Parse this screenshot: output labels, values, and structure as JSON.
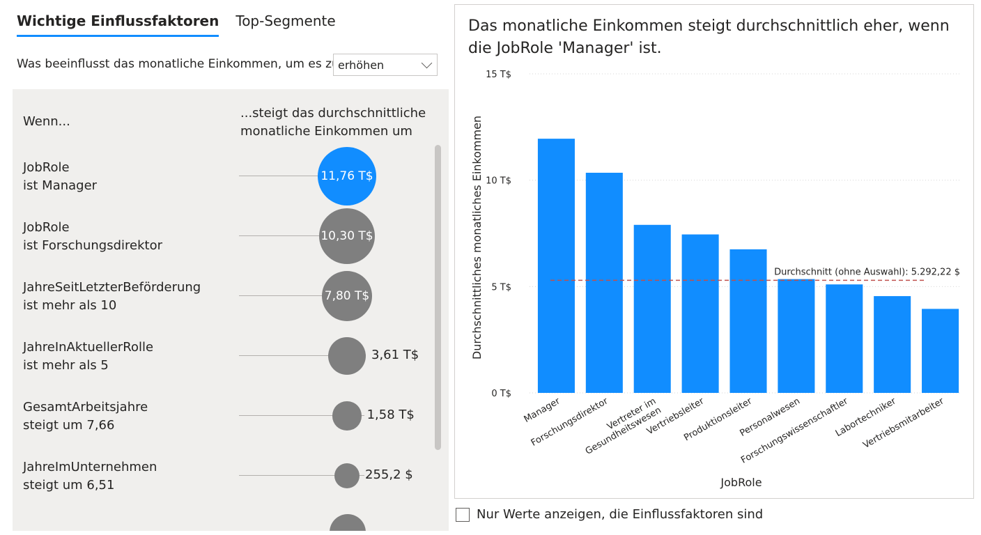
{
  "tabs": [
    {
      "label": "Wichtige Einflussfaktoren",
      "active": true
    },
    {
      "label": "Top-Segmente",
      "active": false
    }
  ],
  "question": "Was beeinflusst das monatliche Einkommen, um es zu",
  "dropdown": {
    "value": "erhöhen"
  },
  "columns": {
    "left": "Wenn...",
    "right_line1": "...steigt das durchschnittliche",
    "right_line2": "monatliche Einkommen um"
  },
  "influencers": [
    {
      "line1": "JobRole",
      "line2": "ist Manager",
      "value": "11,76 T$",
      "magnitude": 11.76,
      "selected": true
    },
    {
      "line1": "JobRole",
      "line2": "ist Forschungsdirektor",
      "value": "10,30 T$",
      "magnitude": 10.3,
      "selected": false
    },
    {
      "line1": "JahreSeitLetzterBeförderung",
      "line2": "ist mehr als 10",
      "value": "7,80 T$",
      "magnitude": 7.8,
      "selected": false
    },
    {
      "line1": "JahreInAktuellerRolle",
      "line2": "ist mehr als 5",
      "value": "3,61 T$",
      "magnitude": 3.61,
      "selected": false
    },
    {
      "line1": "GesamtArbeitsjahre",
      "line2": "steigt um 7,66",
      "value": "1,58 T$",
      "magnitude": 1.58,
      "selected": false
    },
    {
      "line1": "JahreImUnternehmen",
      "line2": "steigt um 6,51",
      "value": "255,2 $",
      "magnitude": 0.2552,
      "selected": false
    }
  ],
  "checkbox": {
    "label": "Nur Werte anzeigen, die Einflussfaktoren sind",
    "checked": false
  },
  "colors": {
    "accent": "#118DFF",
    "bubble_gray": "#7f7f7f",
    "avg_line": "#C0504D"
  },
  "chart_data": {
    "type": "bar",
    "title": "Das monatliche Einkommen steigt durchschnittlich eher, wenn die JobRole 'Manager' ist.",
    "xlabel": "JobRole",
    "ylabel": "Durchschnittliches monatliches Einkommen",
    "ylim": [
      0,
      15000
    ],
    "yticks": [
      {
        "value": 15000,
        "label": "15 T$"
      },
      {
        "value": 10000,
        "label": "10 T$"
      },
      {
        "value": 5000,
        "label": "5 T$"
      },
      {
        "value": 0,
        "label": "0 T$"
      }
    ],
    "categories": [
      [
        "Manager"
      ],
      [
        "Forschungsdirektor"
      ],
      [
        "Vertreter im",
        "Gesundheitswesen"
      ],
      [
        "Vertriebsleiter"
      ],
      [
        "Produktionsleiter"
      ],
      [
        "Personalwesen"
      ],
      [
        "Forschungswissenschaftler"
      ],
      [
        "Labortechniker"
      ],
      [
        "Vertriebsmitarbeiter"
      ]
    ],
    "values": [
      11950,
      10350,
      7900,
      7450,
      6750,
      5350,
      5100,
      4550,
      3950
    ],
    "reference_line": {
      "value": 5292.22,
      "label": "Durchschnitt (ohne Auswahl): 5.292,22 $"
    },
    "grid": true,
    "bar_color": "#118DFF"
  }
}
